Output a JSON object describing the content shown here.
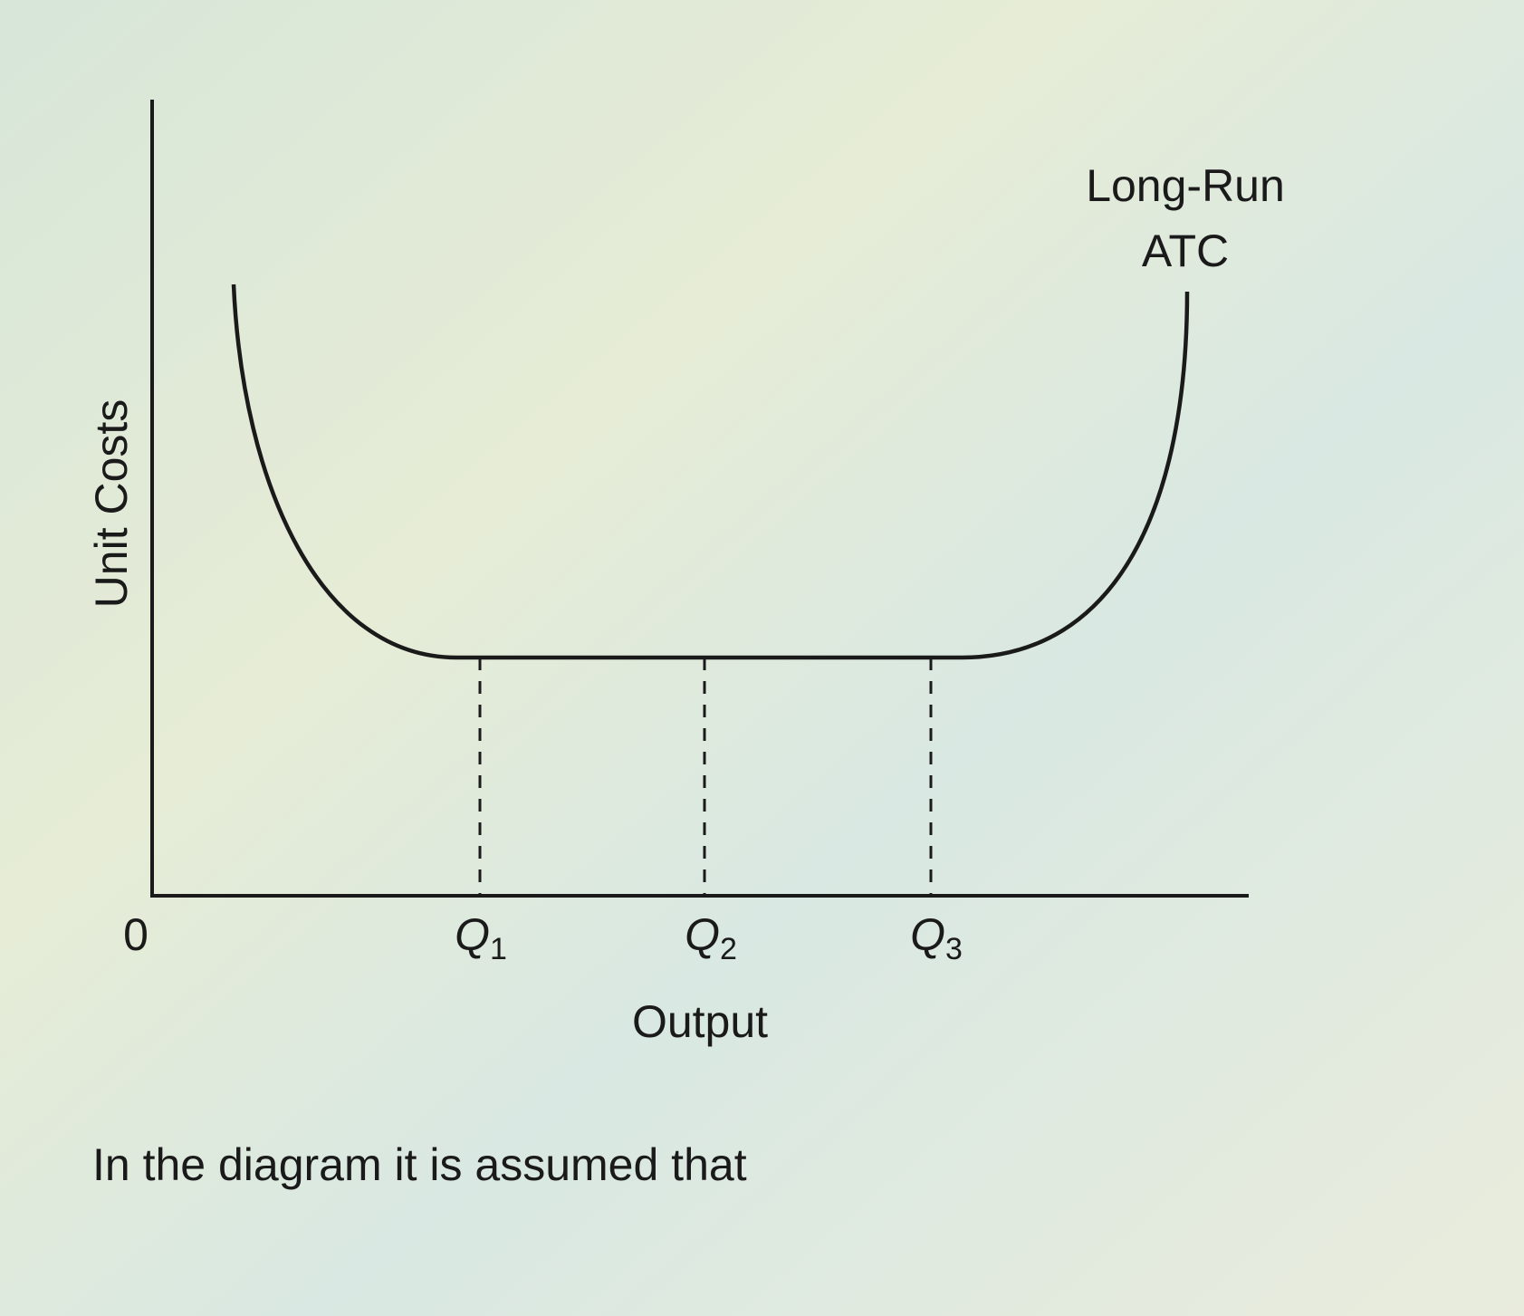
{
  "diagram": {
    "y_axis_label": "Unit Costs",
    "x_axis_label": "Output",
    "origin_label": "0",
    "quantity_labels": [
      {
        "letter": "Q",
        "subscript": "1"
      },
      {
        "letter": "Q",
        "subscript": "2"
      },
      {
        "letter": "Q",
        "subscript": "3"
      }
    ],
    "curve_label": [
      "Long-Run",
      "ATC"
    ]
  },
  "question": "In the diagram it is assumed that"
}
